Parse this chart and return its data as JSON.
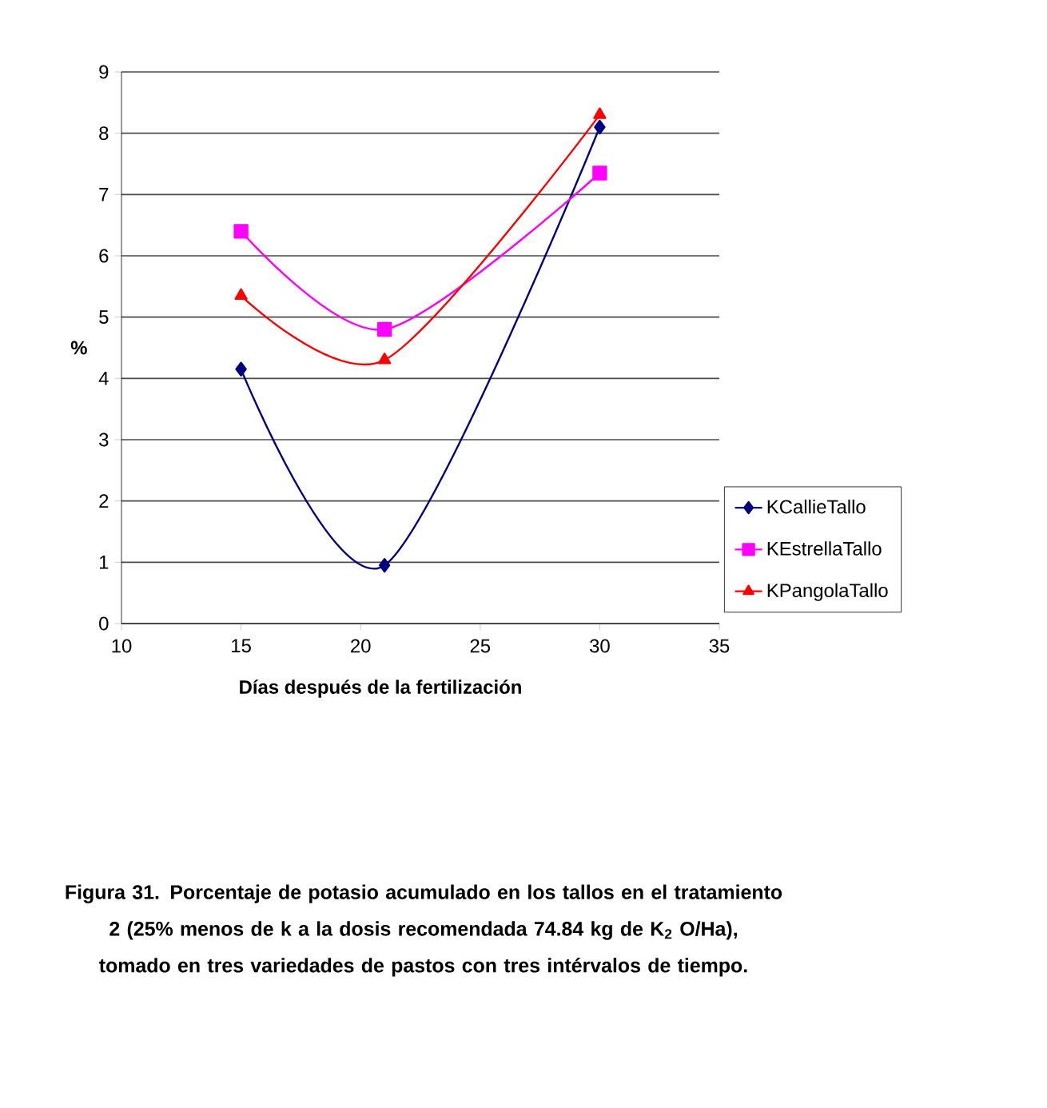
{
  "chart_data": {
    "type": "line",
    "xlabel": "Días después de la fertilización",
    "ylabel": "%",
    "annotations": [
      "Figura 31. Porcentaje de potasio acumulado en los tallos en el tratamiento 2 (25% menos de k a la dosis recomendada 74.84 kg de K$_{2}$ O/Ha), tomado en tres variedades de pastos con tres intérvalos de tiempo."
    ],
    "x": [
      15,
      21,
      30
    ],
    "series": [
      {
        "name": "KCallieTallo",
        "color": "#000080",
        "marker": "diamond",
        "values": [
          4.15,
          0.95,
          8.1
        ]
      },
      {
        "name": "KEstrellaTallo",
        "color": "#ff00ff",
        "marker": "square",
        "values": [
          6.4,
          4.8,
          7.35
        ]
      },
      {
        "name": "KPangolaTallo",
        "color": "#ff0000",
        "marker": "triangle",
        "values": [
          5.35,
          4.3,
          8.3
        ]
      }
    ],
    "xlim": [
      10,
      35
    ],
    "xticks": [
      10,
      15,
      20,
      25,
      30,
      35
    ],
    "ylim": [
      0,
      9
    ],
    "yticks": [
      0,
      1,
      2,
      3,
      4,
      5,
      6,
      7,
      8,
      9
    ],
    "grid": "y",
    "legend": "right",
    "line_style": "solid"
  }
}
